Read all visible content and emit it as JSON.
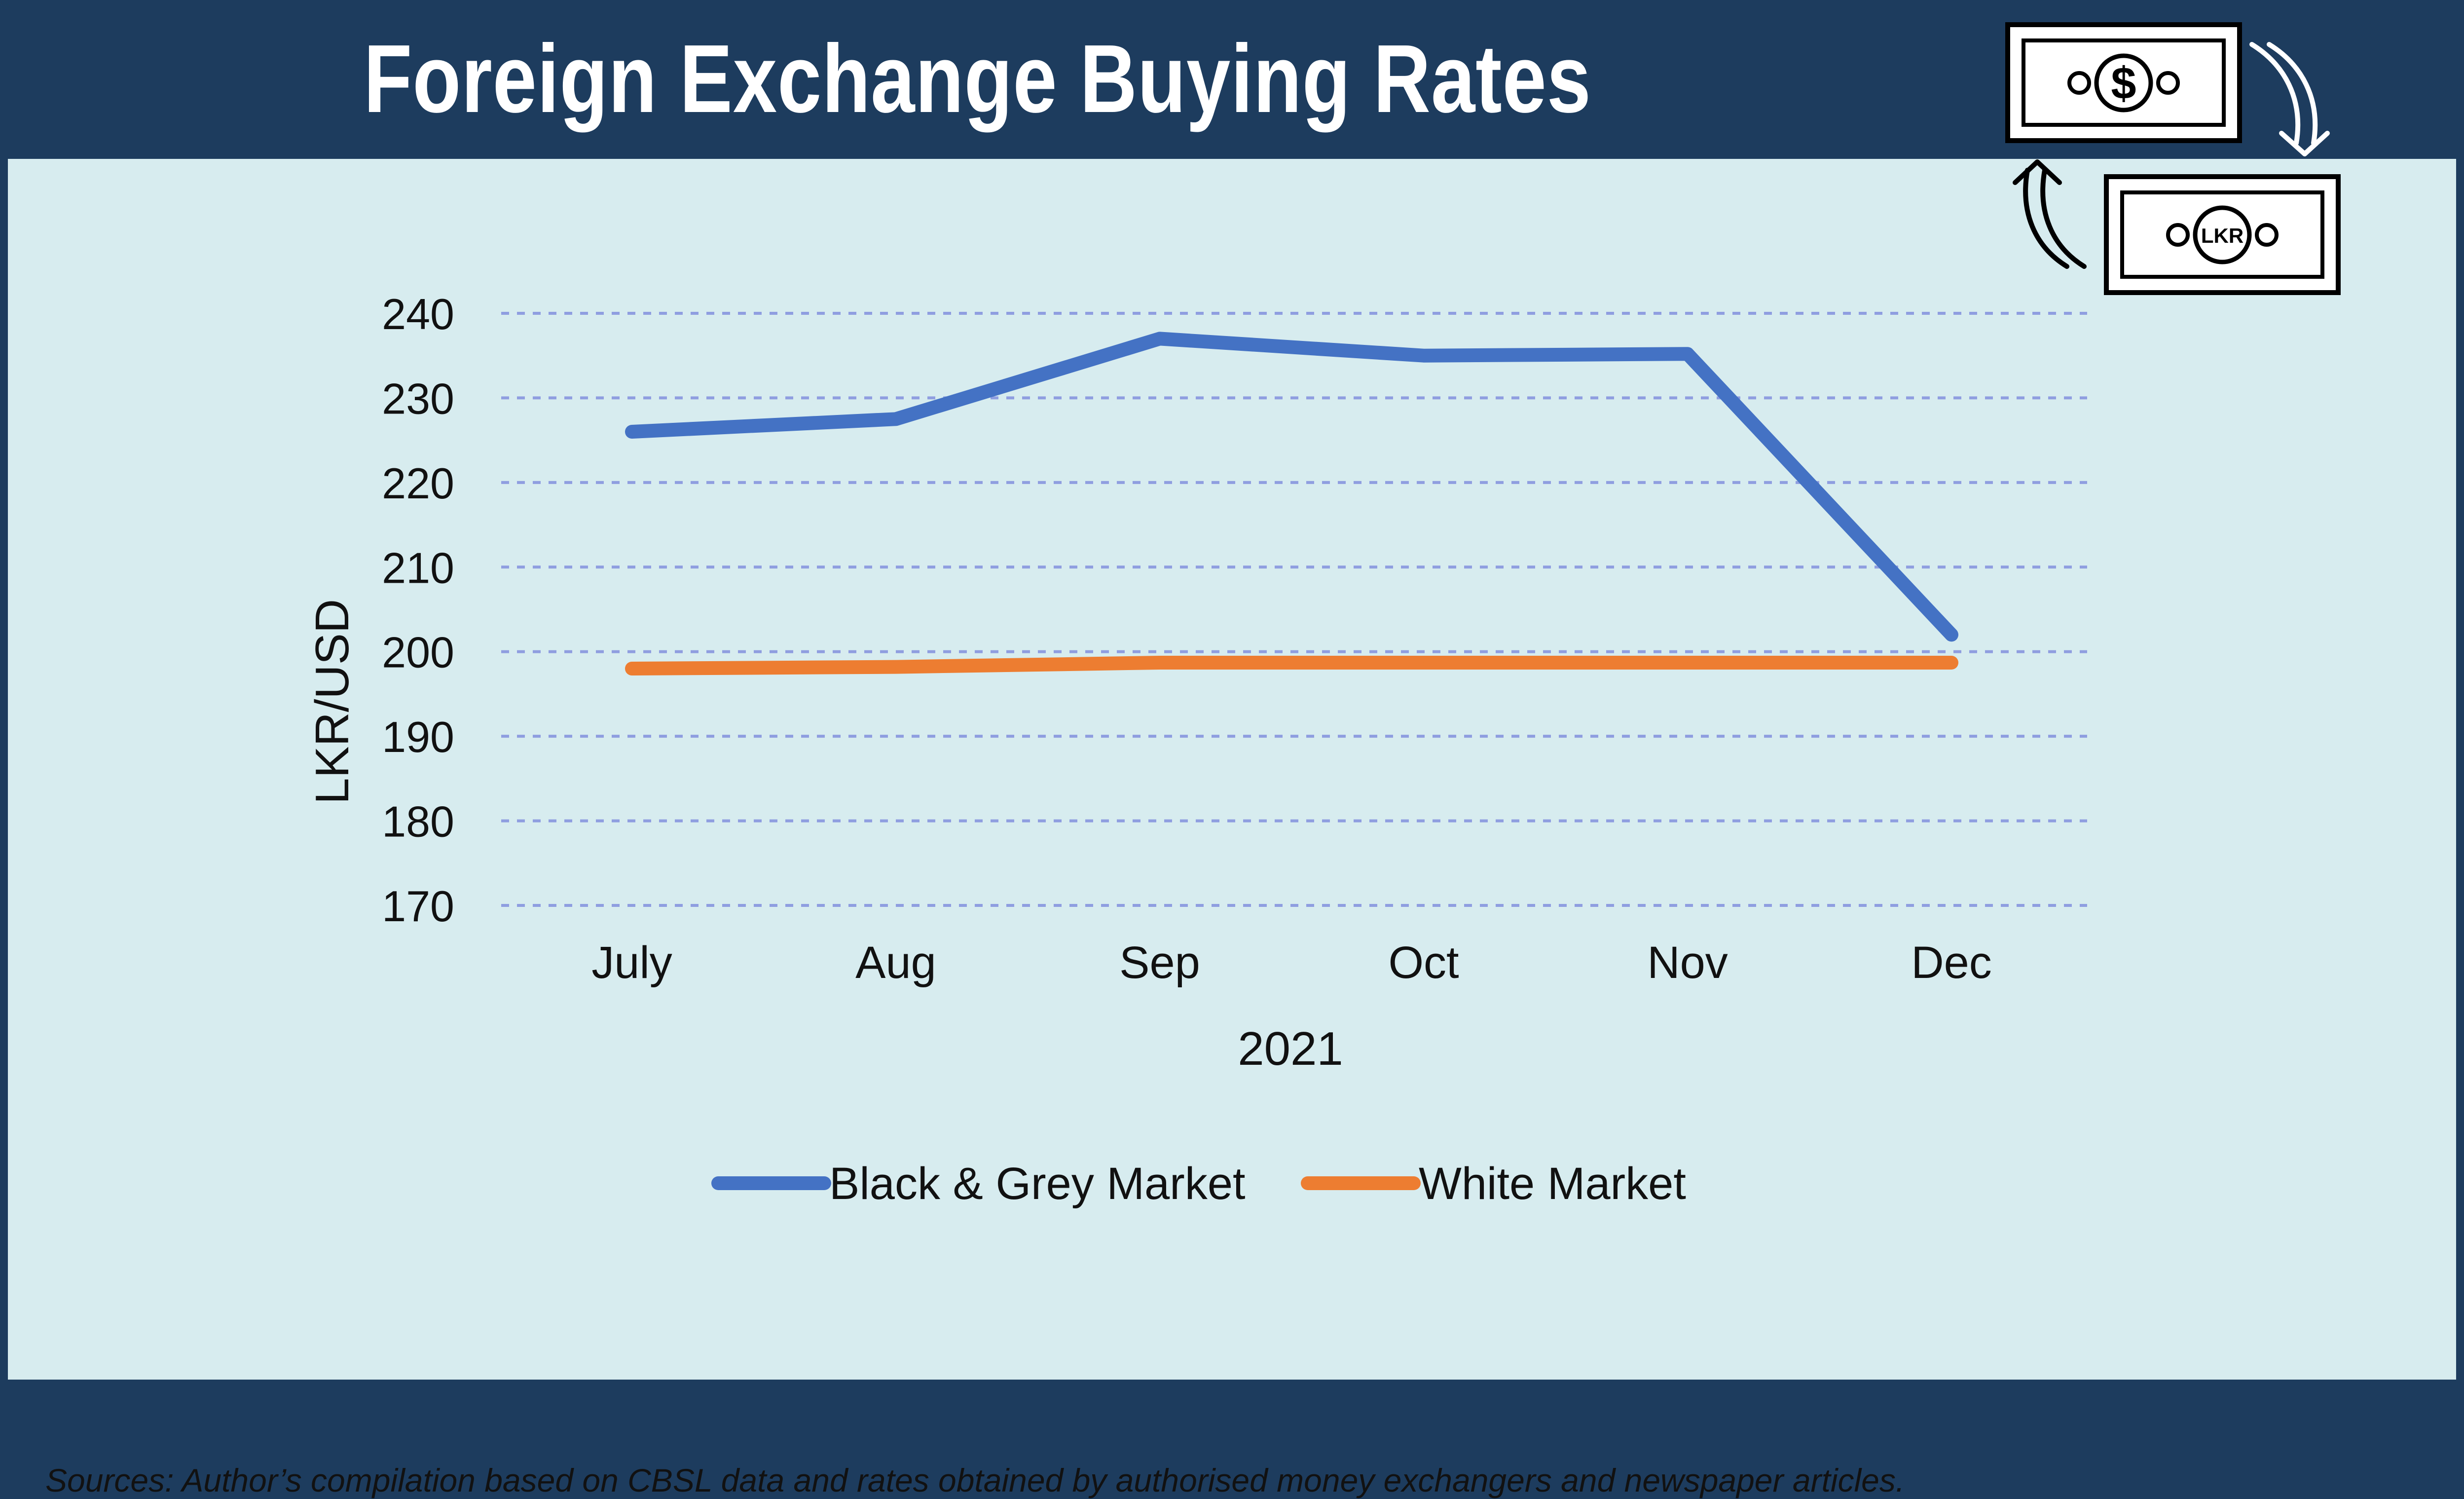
{
  "header": {
    "title": "Foreign Exchange Buying Rates"
  },
  "icons": {
    "top_note": {
      "name": "dollar-banknote-icon",
      "symbol": "$"
    },
    "bottom_note": {
      "name": "lkr-banknote-icon",
      "symbol": "LKR"
    },
    "arrow_down": {
      "name": "curved-arrow-down-icon"
    },
    "arrow_up": {
      "name": "curved-arrow-up-icon"
    }
  },
  "chart_data": {
    "type": "line",
    "title": "Foreign Exchange Buying Rates",
    "xlabel": "2021",
    "ylabel": "LKR/USD",
    "categories": [
      "July",
      "Aug",
      "Sep",
      "Oct",
      "Nov",
      "Dec"
    ],
    "ylim": [
      170,
      240
    ],
    "yticks": [
      240,
      230,
      220,
      210,
      200,
      190,
      180,
      170
    ],
    "grid": true,
    "legend_position": "bottom",
    "series": [
      {
        "name": "Black & Grey Market",
        "color": "#4472c4",
        "values": [
          226,
          227.5,
          237,
          235,
          235.2,
          202
        ]
      },
      {
        "name": "White Market",
        "color": "#ed7d31",
        "values": [
          198,
          198.2,
          198.7,
          198.7,
          198.7,
          198.7
        ]
      }
    ]
  },
  "colors": {
    "background": "#d7ecef",
    "header": "#1d3c5e",
    "grid": "#8f9ee0"
  },
  "source": "Sources: Author’s compilation based on CBSL data and rates obtained by authorised money exchangers and newspaper articles."
}
